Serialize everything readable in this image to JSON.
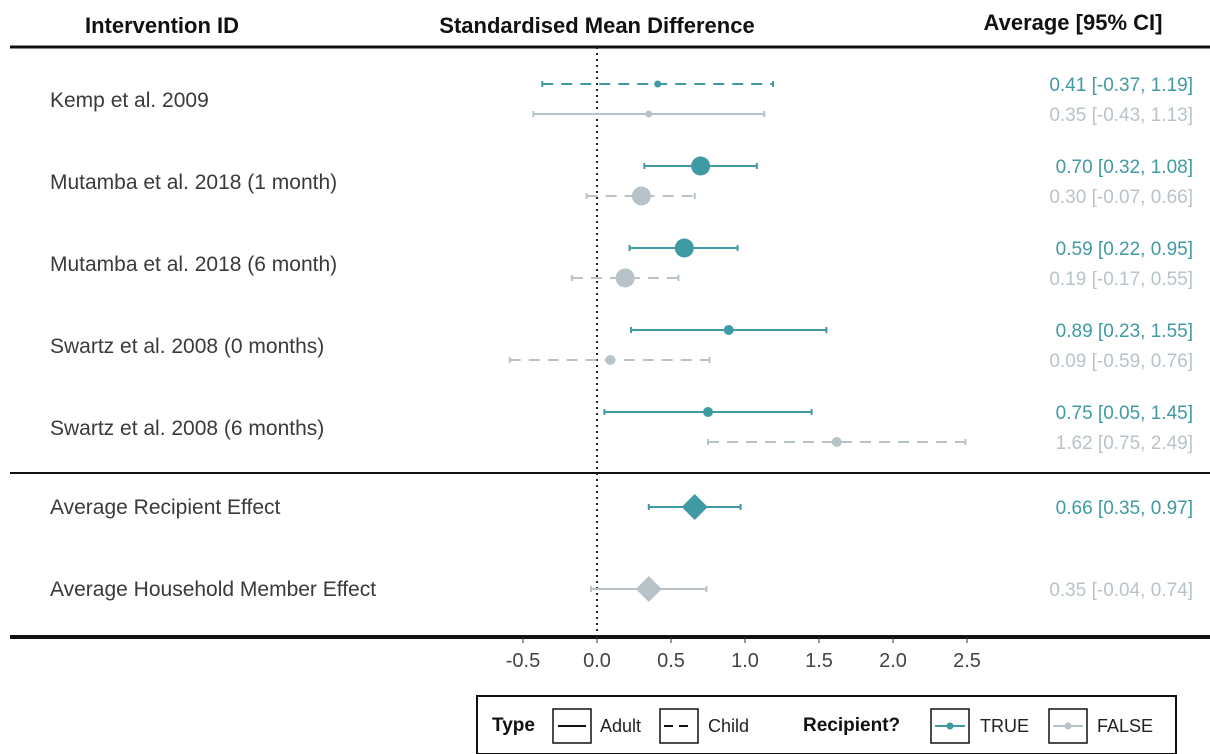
{
  "headers": {
    "left": "Intervention ID",
    "center": "Standardised Mean Difference",
    "right": "Average [95% CI]"
  },
  "colors": {
    "recipient_true": "#3f9aa3",
    "recipient_false": "#b8c3c9",
    "rule": "#111111",
    "label_text": "#3a3a3a"
  },
  "chart_data": {
    "type": "forest",
    "xlabel": "",
    "xlim": [
      -0.55,
      2.65
    ],
    "xticks": [
      -0.5,
      0.0,
      0.5,
      1.0,
      1.5,
      2.0,
      2.5
    ],
    "xtick_labels": [
      "-0.5",
      "0.0",
      "0.5",
      "1.0",
      "1.5",
      "2.0",
      "2.5"
    ],
    "reference_line": 0,
    "rows": [
      {
        "label": "Kemp et al. 2009",
        "estimates": [
          {
            "recipient": "TRUE",
            "type": "Child",
            "est": 0.41,
            "lo": -0.37,
            "hi": 1.19,
            "text": "0.41 [-0.37, 1.19]",
            "size": "small"
          },
          {
            "recipient": "FALSE",
            "type": "Adult",
            "est": 0.35,
            "lo": -0.43,
            "hi": 1.13,
            "text": "0.35 [-0.43, 1.13]",
            "size": "small"
          }
        ]
      },
      {
        "label": "Mutamba et al. 2018 (1 month)",
        "estimates": [
          {
            "recipient": "TRUE",
            "type": "Adult",
            "est": 0.7,
            "lo": 0.32,
            "hi": 1.08,
            "text": "0.70 [0.32, 1.08]",
            "size": "large"
          },
          {
            "recipient": "FALSE",
            "type": "Child",
            "est": 0.3,
            "lo": -0.07,
            "hi": 0.66,
            "text": "0.30 [-0.07, 0.66]",
            "size": "large"
          }
        ]
      },
      {
        "label": "Mutamba et al. 2018 (6 month)",
        "estimates": [
          {
            "recipient": "TRUE",
            "type": "Adult",
            "est": 0.59,
            "lo": 0.22,
            "hi": 0.95,
            "text": "0.59 [0.22, 0.95]",
            "size": "large"
          },
          {
            "recipient": "FALSE",
            "type": "Child",
            "est": 0.19,
            "lo": -0.17,
            "hi": 0.55,
            "text": "0.19 [-0.17, 0.55]",
            "size": "large"
          }
        ]
      },
      {
        "label": "Swartz et al. 2008 (0 months)",
        "estimates": [
          {
            "recipient": "TRUE",
            "type": "Adult",
            "est": 0.89,
            "lo": 0.23,
            "hi": 1.55,
            "text": "0.89 [0.23, 1.55]",
            "size": "medium"
          },
          {
            "recipient": "FALSE",
            "type": "Child",
            "est": 0.09,
            "lo": -0.59,
            "hi": 0.76,
            "text": "0.09 [-0.59, 0.76]",
            "size": "medium"
          }
        ]
      },
      {
        "label": "Swartz et al. 2008 (6 months)",
        "estimates": [
          {
            "recipient": "TRUE",
            "type": "Adult",
            "est": 0.75,
            "lo": 0.05,
            "hi": 1.45,
            "text": "0.75 [0.05, 1.45]",
            "size": "medium"
          },
          {
            "recipient": "FALSE",
            "type": "Child",
            "est": 1.62,
            "lo": 0.75,
            "hi": 2.49,
            "text": "1.62 [0.75, 2.49]",
            "size": "medium"
          }
        ]
      }
    ],
    "summaries": [
      {
        "label": "Average Recipient Effect",
        "recipient": "TRUE",
        "est": 0.66,
        "lo": 0.35,
        "hi": 0.97,
        "text": "0.66 [0.35, 0.97]"
      },
      {
        "label": "Average Household Member Effect",
        "recipient": "FALSE",
        "est": 0.35,
        "lo": -0.04,
        "hi": 0.74,
        "text": "0.35 [-0.04, 0.74]"
      }
    ],
    "legend": {
      "type_title": "Type",
      "type_items": [
        "Adult",
        "Child"
      ],
      "recipient_title": "Recipient?",
      "recipient_items": [
        "TRUE",
        "FALSE"
      ],
      "placement": "bottom"
    }
  }
}
